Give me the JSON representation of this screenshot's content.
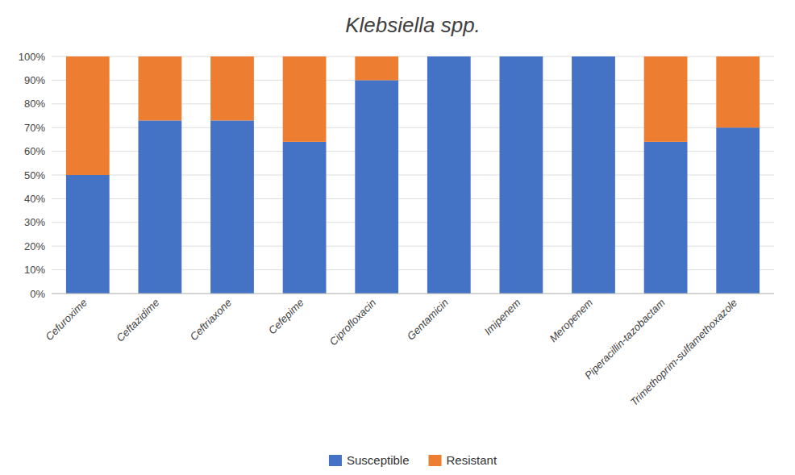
{
  "chart_data": {
    "type": "bar",
    "title": "Klebsiella spp.",
    "categories": [
      "Cefuroxime",
      "Ceftazidime",
      "Ceftriaxone",
      "Cefepime",
      "Ciprofloxacin",
      "Gentamicin",
      "Imipenem",
      "Meropenem",
      "Piperacillin-tazobactam",
      "Trimethoprim-sulfamethoxazole"
    ],
    "series": [
      {
        "name": "Susceptible",
        "color": "#4472C4",
        "values": [
          50,
          73,
          73,
          64,
          90,
          100,
          100,
          100,
          64,
          70
        ]
      },
      {
        "name": "Resistant",
        "color": "#ED7D31",
        "values": [
          50,
          27,
          27,
          36,
          10,
          0,
          0,
          0,
          36,
          30
        ]
      }
    ],
    "stacked": true,
    "ylim": [
      0,
      100
    ],
    "yticks": [
      {
        "value": 0,
        "label": "0%"
      },
      {
        "value": 10,
        "label": "10%"
      },
      {
        "value": 20,
        "label": "20%"
      },
      {
        "value": 30,
        "label": "30%"
      },
      {
        "value": 40,
        "label": "40%"
      },
      {
        "value": 50,
        "label": "50%"
      },
      {
        "value": 60,
        "label": "60%"
      },
      {
        "value": 70,
        "label": "70%"
      },
      {
        "value": 80,
        "label": "80%"
      },
      {
        "value": 90,
        "label": "90%"
      },
      {
        "value": 100,
        "label": "100%"
      }
    ],
    "grid": true,
    "legend": "bottom"
  }
}
